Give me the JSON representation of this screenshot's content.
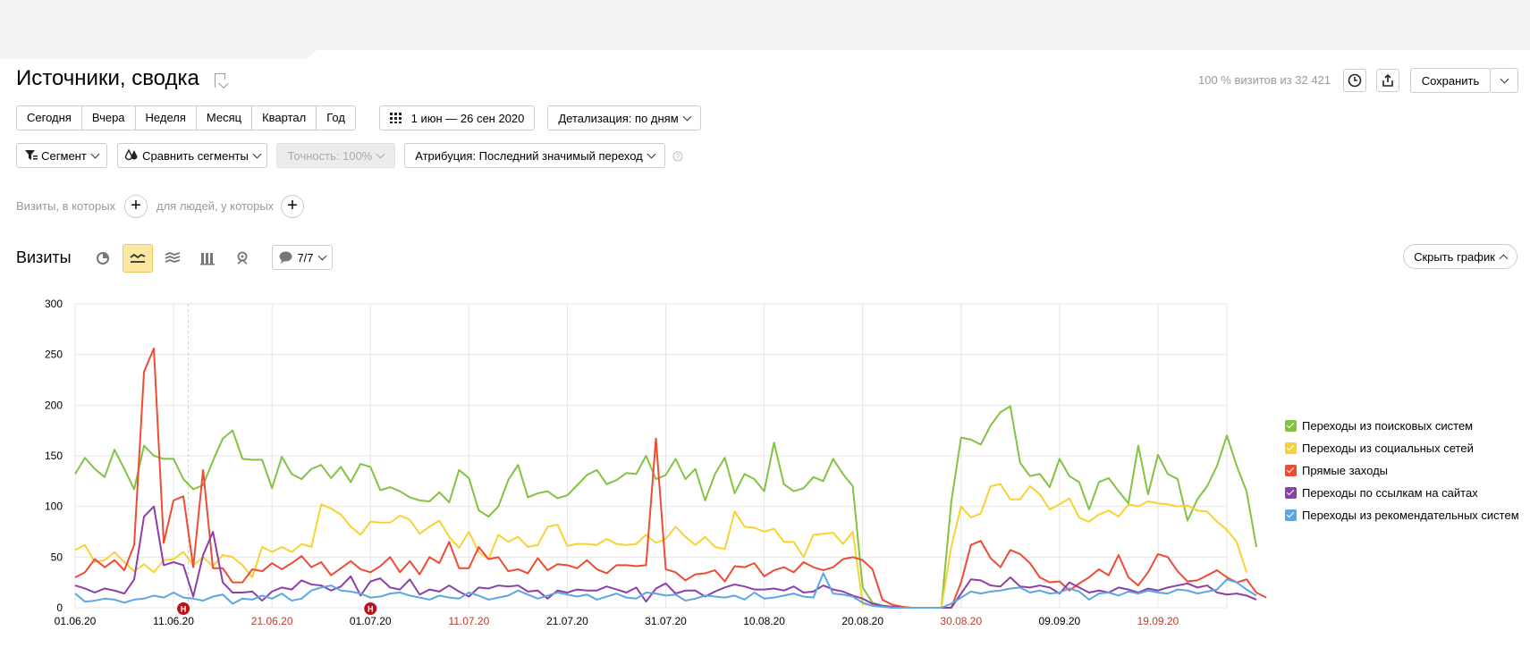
{
  "header": {
    "title": "Источники, сводка",
    "visits_info": "100 % визитов из 32 421",
    "save_label": "Сохранить"
  },
  "periods": [
    "Сегодня",
    "Вчера",
    "Неделя",
    "Месяц",
    "Квартал",
    "Год"
  ],
  "date_range": "1 июн — 26 сен 2020",
  "detail": "Детализация: по дням",
  "filters": {
    "segment": "Сегмент",
    "compare": "Сравнить сегменты",
    "accuracy": "Точность: 100%",
    "attribution": "Атрибуция: Последний значимый переход"
  },
  "conditions": {
    "visits_label": "Визиты, в которых",
    "people_label": "для людей, у которых"
  },
  "chart_section": {
    "title": "Визиты",
    "annotations_label": "7/7",
    "hide_label": "Скрыть график"
  },
  "colors": {
    "search": "#82c341",
    "social": "#f8d234",
    "direct": "#ee4b33",
    "links": "#8e3fa7",
    "recommend": "#5ba6e3",
    "grid": "#e6e6e6",
    "holiday_red": "#c0392b"
  },
  "chart_data": {
    "type": "line",
    "title": "",
    "xlabel": "",
    "ylabel": "",
    "ylim": [
      0,
      300
    ],
    "yticks": [
      0,
      50,
      100,
      150,
      200,
      250,
      300
    ],
    "x_start": "01.06.20",
    "x_end": "26.09.20",
    "xticks": [
      {
        "label": "01.06.20",
        "day": 0,
        "holiday": false
      },
      {
        "label": "11.06.20",
        "day": 10,
        "holiday": false
      },
      {
        "label": "21.06.20",
        "day": 20,
        "holiday": true
      },
      {
        "label": "01.07.20",
        "day": 30,
        "holiday": false
      },
      {
        "label": "11.07.20",
        "day": 40,
        "holiday": true
      },
      {
        "label": "21.07.20",
        "day": 50,
        "holiday": false
      },
      {
        "label": "31.07.20",
        "day": 60,
        "holiday": false
      },
      {
        "label": "10.08.20",
        "day": 70,
        "holiday": false
      },
      {
        "label": "20.08.20",
        "day": 80,
        "holiday": false
      },
      {
        "label": "30.08.20",
        "day": 90,
        "holiday": true
      },
      {
        "label": "09.09.20",
        "day": 100,
        "holiday": false
      },
      {
        "label": "19.09.20",
        "day": 110,
        "holiday": true
      }
    ],
    "markers": [
      {
        "day": 11,
        "label": "Н"
      },
      {
        "day": 30,
        "label": "Н"
      }
    ],
    "series": [
      {
        "name": "Переходы из поисковых систем",
        "color_key": "search",
        "values": [
          132,
          148,
          137,
          129,
          156,
          137,
          117,
          160,
          150,
          147,
          147,
          127,
          117,
          121,
          145,
          167,
          175,
          147,
          146,
          146,
          118,
          149,
          132,
          127,
          137,
          141,
          128,
          139,
          124,
          142,
          139,
          116,
          119,
          115,
          109,
          106,
          105,
          114,
          104,
          136,
          128,
          96,
          90,
          100,
          126,
          141,
          109,
          113,
          115,
          108,
          111,
          121,
          131,
          136,
          122,
          126,
          133,
          132,
          150,
          127,
          131,
          147,
          127,
          137,
          106,
          132,
          148,
          113,
          132,
          127,
          115,
          163,
          122,
          115,
          118,
          129,
          125,
          147,
          132,
          120,
          20,
          5,
          2,
          0,
          0,
          0,
          0,
          0,
          0,
          104,
          168,
          166,
          161,
          180,
          193,
          199,
          143,
          130,
          132,
          119,
          147,
          130,
          124,
          97,
          124,
          128,
          115,
          103,
          160,
          112,
          151,
          132,
          127,
          86,
          107,
          120,
          140,
          170,
          140,
          115,
          60
        ]
      },
      {
        "name": "Переходы из социальных сетей",
        "color_key": "social",
        "values": [
          57,
          62,
          45,
          47,
          55,
          45,
          36,
          43,
          35,
          47,
          48,
          55,
          42,
          50,
          41,
          52,
          50,
          42,
          30,
          60,
          55,
          60,
          55,
          63,
          60,
          102,
          98,
          92,
          80,
          72,
          85,
          84,
          84,
          91,
          87,
          73,
          80,
          86,
          70,
          59,
          75,
          55,
          48,
          72,
          65,
          70,
          60,
          62,
          80,
          82,
          61,
          63,
          63,
          62,
          68,
          63,
          62,
          63,
          72,
          64,
          68,
          80,
          70,
          62,
          70,
          60,
          58,
          95,
          80,
          79,
          75,
          78,
          65,
          65,
          50,
          72,
          73,
          74,
          63,
          75,
          4,
          2,
          1,
          0,
          0,
          0,
          0,
          0,
          0,
          60,
          100,
          89,
          93,
          120,
          122,
          107,
          107,
          120,
          112,
          97,
          102,
          108,
          89,
          85,
          92,
          96,
          90,
          102,
          100,
          105,
          103,
          102,
          100,
          101,
          96,
          95,
          85,
          77,
          65,
          35
        ]
      },
      {
        "name": "Прямые заходы",
        "color_key": "direct",
        "values": [
          30,
          35,
          48,
          40,
          47,
          37,
          62,
          233,
          256,
          64,
          106,
          110,
          40,
          136,
          39,
          39,
          25,
          25,
          38,
          36,
          44,
          38,
          44,
          51,
          40,
          45,
          32,
          39,
          46,
          38,
          35,
          41,
          50,
          35,
          46,
          33,
          50,
          44,
          65,
          39,
          39,
          60,
          48,
          50,
          36,
          38,
          34,
          49,
          37,
          43,
          42,
          39,
          47,
          38,
          34,
          42,
          42,
          41,
          42,
          167,
          38,
          35,
          27,
          33,
          34,
          37,
          26,
          41,
          40,
          44,
          31,
          37,
          40,
          35,
          45,
          40,
          37,
          40,
          48,
          50,
          47,
          38,
          8,
          3,
          1,
          0,
          0,
          0,
          0,
          0,
          25,
          62,
          66,
          49,
          40,
          57,
          53,
          44,
          30,
          25,
          26,
          17,
          24,
          30,
          38,
          32,
          52,
          30,
          22,
          35,
          53,
          50,
          36,
          26,
          27,
          32,
          37,
          30,
          25,
          28,
          15,
          10
        ]
      },
      {
        "name": "Переходы по ссылкам на сайтах",
        "color_key": "links",
        "values": [
          22,
          19,
          15,
          19,
          17,
          14,
          28,
          90,
          100,
          42,
          45,
          42,
          11,
          52,
          75,
          25,
          15,
          15,
          16,
          7,
          16,
          20,
          18,
          27,
          23,
          22,
          17,
          21,
          31,
          12,
          26,
          29,
          20,
          18,
          28,
          13,
          18,
          16,
          22,
          16,
          11,
          20,
          19,
          22,
          21,
          22,
          16,
          17,
          9,
          17,
          15,
          18,
          17,
          17,
          21,
          18,
          15,
          20,
          6,
          19,
          24,
          14,
          17,
          17,
          11,
          16,
          20,
          23,
          21,
          18,
          18,
          19,
          17,
          21,
          15,
          16,
          22,
          18,
          16,
          12,
          9,
          4,
          2,
          1,
          0,
          0,
          0,
          0,
          0,
          0,
          14,
          28,
          27,
          22,
          21,
          30,
          21,
          20,
          22,
          20,
          14,
          25,
          20,
          15,
          17,
          15,
          20,
          18,
          15,
          19,
          17,
          20,
          22,
          24,
          20,
          22,
          15,
          13,
          14,
          12,
          8
        ]
      },
      {
        "name": "Переходы из рекомендательных систем",
        "color_key": "recommend",
        "values": [
          14,
          6,
          7,
          9,
          8,
          5,
          8,
          9,
          12,
          10,
          15,
          10,
          9,
          7,
          11,
          13,
          4,
          9,
          8,
          12,
          9,
          14,
          7,
          9,
          17,
          20,
          22,
          17,
          16,
          14,
          10,
          11,
          14,
          15,
          12,
          10,
          8,
          12,
          10,
          9,
          15,
          12,
          8,
          10,
          12,
          17,
          13,
          9,
          12,
          15,
          13,
          11,
          13,
          8,
          11,
          14,
          10,
          9,
          15,
          14,
          12,
          13,
          7,
          9,
          12,
          11,
          10,
          12,
          8,
          15,
          9,
          10,
          12,
          14,
          11,
          10,
          34,
          14,
          13,
          11,
          5,
          2,
          1,
          0,
          0,
          0,
          0,
          0,
          0,
          4,
          10,
          16,
          14,
          16,
          17,
          19,
          20,
          15,
          17,
          14,
          15,
          19,
          16,
          8,
          14,
          15,
          12,
          16,
          14,
          17,
          15,
          14,
          18,
          17,
          14,
          16,
          18,
          28,
          25,
          18,
          12
        ]
      }
    ]
  }
}
